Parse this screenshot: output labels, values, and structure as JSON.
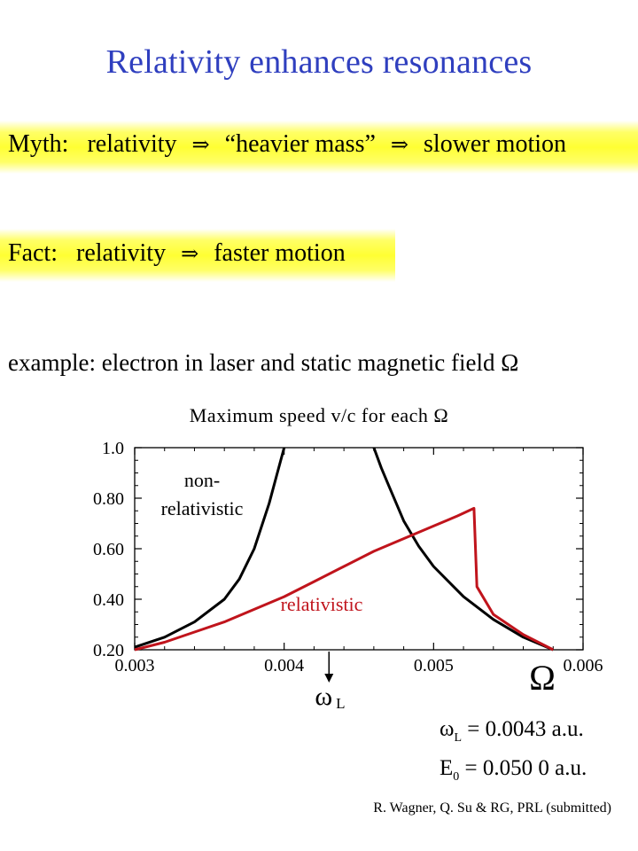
{
  "title": "Relativity enhances resonances",
  "myth": {
    "label": "Myth:",
    "part1": "relativity",
    "part2": "“heavier mass”",
    "part3": "slower motion"
  },
  "fact": {
    "label": "Fact:",
    "part1": "relativity",
    "part2": "faster motion"
  },
  "example": "example: electron in laser and static magnetic field Ω",
  "arrow_symbol": "⇒",
  "colors": {
    "title": "#2f3fbf",
    "highlight": "#ffff33",
    "relativistic": "#c0141c",
    "nonrelativistic": "#000000"
  },
  "chart_data": {
    "type": "line",
    "title": "Maximum speed v/c for each Ω",
    "xlabel": "Ω",
    "ylabel": "",
    "xlim": [
      0.003,
      0.006
    ],
    "ylim": [
      0.2,
      1.0
    ],
    "x_ticks": [
      "0.003",
      "0.004",
      "0.005",
      "0.006"
    ],
    "y_ticks": [
      "0.20",
      "0.40",
      "0.60",
      "0.80",
      "1.0"
    ],
    "grid": false,
    "series": [
      {
        "name": "non-relativistic",
        "x": [
          0.003,
          0.0032,
          0.0034,
          0.0036,
          0.0037,
          0.0038,
          0.0039,
          0.00395,
          0.004
        ],
        "y": [
          0.21,
          0.25,
          0.31,
          0.4,
          0.48,
          0.6,
          0.78,
          0.89,
          1.0
        ]
      },
      {
        "name": "non-relativistic",
        "x": [
          0.0046,
          0.00465,
          0.0047,
          0.0048,
          0.0049,
          0.005,
          0.0052,
          0.0054,
          0.0056,
          0.0058
        ],
        "y": [
          1.0,
          0.92,
          0.85,
          0.71,
          0.61,
          0.53,
          0.41,
          0.32,
          0.25,
          0.2
        ]
      },
      {
        "name": "relativistic",
        "x": [
          0.003,
          0.0032,
          0.0034,
          0.0036,
          0.0038,
          0.004,
          0.0042,
          0.0044,
          0.0046,
          0.0048,
          0.005,
          0.00516,
          0.00527,
          0.00529,
          0.0054,
          0.0056,
          0.0058
        ],
        "y": [
          0.2,
          0.23,
          0.27,
          0.31,
          0.36,
          0.41,
          0.47,
          0.53,
          0.59,
          0.64,
          0.69,
          0.73,
          0.76,
          0.45,
          0.34,
          0.26,
          0.2
        ]
      }
    ],
    "annotations": {
      "nonrel_line1": "non-",
      "nonrel_line2": "relativistic",
      "rel": "relativistic",
      "omega_axis": "Ω",
      "omega_L": "ω",
      "omega_L_sub": "L"
    }
  },
  "equations": {
    "eq1_symbol": "ω",
    "eq1_sub": "L",
    "eq1_rhs": " = 0.0043 a.u.",
    "eq2_symbol": "E",
    "eq2_sub": "0",
    "eq2_rhs": " = 0.050 0 a.u."
  },
  "citation": "R. Wagner, Q. Su & RG, PRL (submitted)"
}
